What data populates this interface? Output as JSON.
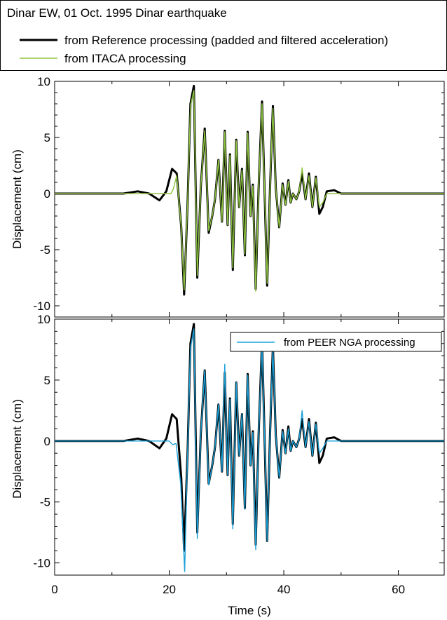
{
  "chart_data": [
    {
      "type": "line",
      "header_title": "Dinar EW, 01 Oct. 1995 Dinar earthquake",
      "ylabel": "Displacement (cm)",
      "xlabel": "",
      "xlim": [
        0,
        68
      ],
      "ylim": [
        -11,
        10
      ],
      "yticks": [
        10,
        5,
        0,
        -5,
        -10
      ],
      "xticks": [
        0,
        20,
        40,
        60
      ],
      "legend_position": "top-left (above plot)",
      "series": [
        {
          "name": "from Reference processing (padded and filtered acceleration)",
          "color": "#000000",
          "x": [
            0,
            12,
            14.5,
            16.5,
            18.3,
            19.5,
            20.5,
            21.3,
            22.1,
            22.6,
            23.2,
            23.7,
            24.3,
            24.9,
            25.5,
            26.2,
            26.9,
            27.5,
            28.0,
            28.6,
            29.2,
            29.7,
            30.2,
            30.6,
            31.1,
            31.7,
            32.2,
            32.7,
            33.2,
            33.7,
            34.2,
            34.6,
            35.1,
            35.6,
            36.2,
            36.6,
            37.1,
            37.6,
            38.1,
            38.6,
            39.2,
            39.8,
            40.3,
            40.8,
            41.2,
            41.6,
            42.2,
            42.7,
            43.2,
            43.8,
            44.4,
            45.0,
            45.6,
            46.2,
            46.8,
            47.5,
            48.8,
            50.0,
            52.0,
            68
          ],
          "y": [
            0,
            0,
            0.2,
            0,
            -0.6,
            0.2,
            2.2,
            1.8,
            -3.0,
            -9.0,
            -1.0,
            8.0,
            9.6,
            -7.5,
            0.5,
            5.8,
            -3.5,
            -2.0,
            -0.5,
            3.0,
            -2.5,
            5.6,
            -2.8,
            3.5,
            -6.8,
            4.8,
            -1.2,
            2.2,
            -5.5,
            5.5,
            -2.0,
            0.8,
            -8.5,
            0.5,
            8.2,
            1.0,
            -8.2,
            0.5,
            7.8,
            0.5,
            -3.0,
            0.9,
            -1.0,
            1.2,
            -0.8,
            0,
            -0.5,
            0.2,
            1.8,
            -0.5,
            1.8,
            -1.2,
            1.5,
            -1.8,
            -1.2,
            0.2,
            0.3,
            0,
            0,
            0
          ]
        },
        {
          "name": "from ITACA processing",
          "color": "#8dc63f",
          "x": [
            0,
            20.3,
            20.7,
            21.3,
            22.1,
            22.6,
            23.2,
            23.7,
            24.3,
            24.9,
            25.5,
            26.2,
            26.9,
            27.5,
            28.0,
            28.6,
            29.2,
            29.7,
            30.2,
            30.6,
            31.1,
            31.7,
            32.2,
            32.7,
            33.2,
            33.7,
            34.2,
            34.6,
            35.1,
            35.6,
            36.2,
            36.6,
            37.1,
            37.6,
            38.1,
            38.6,
            39.2,
            39.8,
            40.3,
            40.8,
            41.2,
            41.6,
            42.2,
            42.7,
            43.2,
            43.8,
            44.4,
            45.0,
            45.6,
            46.2,
            46.8,
            47.5,
            68
          ],
          "y": [
            0,
            0,
            0.4,
            1.6,
            -3.0,
            -8.6,
            -1.0,
            7.8,
            9.2,
            -7.3,
            0.5,
            5.6,
            -3.3,
            -2.0,
            -0.5,
            3.0,
            -2.5,
            5.5,
            -2.8,
            3.4,
            -6.6,
            4.7,
            -1.2,
            2.1,
            -5.4,
            5.4,
            -2.0,
            0.7,
            -8.7,
            0.5,
            8.0,
            1.0,
            -8.0,
            0.5,
            7.6,
            0.5,
            -3.0,
            0.8,
            -1.0,
            1.1,
            -0.8,
            0,
            -0.5,
            0.2,
            2.3,
            -0.5,
            1.6,
            -1.2,
            1.4,
            -1.2,
            -0.8,
            0,
            0
          ]
        }
      ]
    },
    {
      "type": "line",
      "ylabel": "Displacement (cm)",
      "xlabel": "Time (s)",
      "xlim": [
        0,
        68
      ],
      "ylim": [
        -11,
        10
      ],
      "yticks": [
        10,
        5,
        0,
        -5,
        -10
      ],
      "xticks": [
        0,
        20,
        40,
        60
      ],
      "legend_position": "top-right",
      "series": [
        {
          "name": "",
          "color": "#000000",
          "x": [
            0,
            12,
            14.5,
            16.5,
            18.3,
            19.5,
            20.5,
            21.3,
            22.1,
            22.6,
            23.2,
            23.7,
            24.3,
            24.9,
            25.5,
            26.2,
            26.9,
            27.5,
            28.0,
            28.6,
            29.2,
            29.7,
            30.2,
            30.6,
            31.1,
            31.7,
            32.2,
            32.7,
            33.2,
            33.7,
            34.2,
            34.6,
            35.1,
            35.6,
            36.2,
            36.6,
            37.1,
            37.6,
            38.1,
            38.6,
            39.2,
            39.8,
            40.3,
            40.8,
            41.2,
            41.6,
            42.2,
            42.7,
            43.2,
            43.8,
            44.4,
            45.0,
            45.6,
            46.2,
            46.8,
            47.5,
            48.8,
            50.0,
            52.0,
            68
          ],
          "y": [
            0,
            0,
            0.2,
            0,
            -0.6,
            0.2,
            2.2,
            1.8,
            -3.0,
            -9.0,
            -1.0,
            8.0,
            9.6,
            -7.5,
            0.5,
            5.8,
            -3.5,
            -2.0,
            -0.5,
            3.0,
            -2.5,
            5.6,
            -2.8,
            3.5,
            -6.8,
            4.8,
            -1.2,
            2.2,
            -5.5,
            5.5,
            -2.0,
            0.8,
            -8.5,
            0.5,
            8.2,
            1.0,
            -8.2,
            0.5,
            7.8,
            0.5,
            -3.0,
            0.9,
            -1.0,
            1.2,
            -0.8,
            0,
            -0.5,
            0.2,
            1.8,
            -0.5,
            1.8,
            -1.2,
            1.5,
            -1.8,
            -1.2,
            0.2,
            0.3,
            0,
            0,
            0
          ]
        },
        {
          "name": "from PEER NGA processing",
          "color": "#1aa0d8",
          "x": [
            0,
            20.0,
            20.6,
            21.2,
            22.0,
            22.7,
            23.2,
            23.7,
            24.3,
            24.9,
            25.5,
            26.2,
            26.9,
            27.5,
            28.0,
            28.6,
            29.2,
            29.7,
            30.2,
            30.6,
            31.1,
            31.7,
            32.2,
            32.7,
            33.2,
            33.7,
            34.2,
            34.6,
            35.1,
            35.6,
            36.2,
            36.6,
            37.1,
            37.6,
            38.1,
            38.6,
            39.2,
            39.8,
            40.3,
            40.8,
            41.2,
            41.6,
            42.2,
            42.7,
            43.2,
            43.8,
            44.4,
            45.0,
            45.6,
            46.2,
            46.8,
            47.5,
            68
          ],
          "y": [
            0,
            0,
            -0.3,
            -0.2,
            -3.5,
            -10.7,
            -1.0,
            7.6,
            9.2,
            -8.0,
            0.5,
            5.8,
            -3.6,
            -2.0,
            -0.5,
            3.0,
            -2.5,
            6.3,
            -2.8,
            3.4,
            -7.2,
            4.8,
            -1.2,
            2.2,
            -5.6,
            5.4,
            -2.0,
            0.7,
            -8.9,
            0.5,
            8.0,
            1.0,
            -8.2,
            0.5,
            7.6,
            0.5,
            -3.0,
            0.8,
            -1.0,
            1.0,
            -0.8,
            0,
            -0.5,
            0.2,
            2.5,
            -0.5,
            1.6,
            -1.2,
            1.4,
            -1.0,
            -0.6,
            0,
            0
          ]
        }
      ]
    }
  ]
}
